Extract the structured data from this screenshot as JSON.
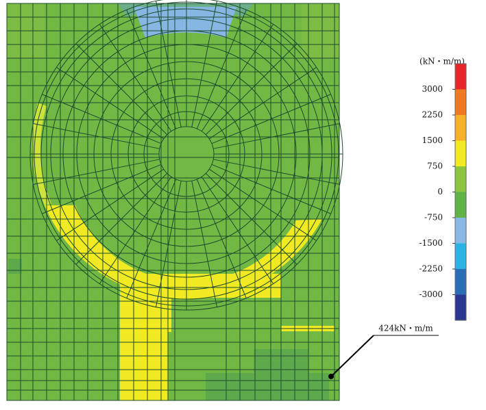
{
  "legend": {
    "unit": "(kN・m/m)",
    "ticks": [
      3000,
      2250,
      1500,
      750,
      0,
      -750,
      -1500,
      -2250,
      -3000
    ],
    "colors": [
      "#e8262a",
      "#f07a22",
      "#f6b02a",
      "#f2ea23",
      "#8cc63f",
      "#5fb347",
      "#8ab8e4",
      "#2bb3e6",
      "#2b6db5",
      "#2b3590"
    ]
  },
  "annotation": "424kN・m/m"
}
